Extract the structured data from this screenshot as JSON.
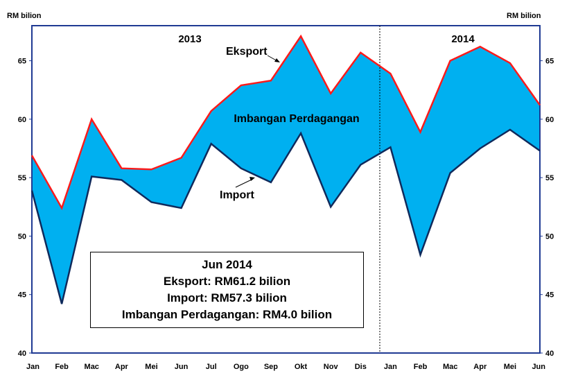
{
  "chart_data": {
    "type": "area",
    "categories": [
      "Jan",
      "Feb",
      "Mac",
      "Apr",
      "Mei",
      "Jun",
      "Jul",
      "Ogo",
      "Sep",
      "Okt",
      "Nov",
      "Dis",
      "Jan",
      "Feb",
      "Mac",
      "Apr",
      "Mei",
      "Jun"
    ],
    "series": [
      {
        "name": "Eksport",
        "values": [
          56.9,
          52.4,
          60.0,
          55.8,
          55.7,
          56.7,
          60.7,
          62.9,
          63.3,
          67.1,
          62.2,
          65.7,
          63.9,
          58.9,
          65.0,
          66.2,
          64.8,
          61.2
        ]
      },
      {
        "name": "Import",
        "values": [
          53.9,
          44.2,
          55.1,
          54.8,
          52.9,
          52.4,
          57.9,
          55.8,
          54.6,
          58.8,
          52.5,
          56.1,
          57.6,
          48.4,
          55.4,
          57.5,
          59.1,
          57.3
        ]
      }
    ],
    "area_label": "Imbangan Perdagangan",
    "y_unit_left": "RM bilion",
    "y_unit_right": "RM bilion",
    "ylim": [
      40,
      68
    ],
    "yticks": [
      40,
      45,
      50,
      55,
      60,
      65
    ],
    "year_labels": [
      "2013",
      "2014"
    ],
    "colors": {
      "export_line": "#ff1a1a",
      "import_line": "#0f2a5c",
      "area_fill": "#00b0f0",
      "frame": "#1f3a93"
    },
    "grid": false,
    "legend": "none"
  },
  "infobox": {
    "title": "Jun 2014",
    "line1": "Eksport: RM61.2 bilion",
    "line2": "Import: RM57.3 bilion",
    "line3": "Imbangan Perdagangan: RM4.0 bilion"
  }
}
